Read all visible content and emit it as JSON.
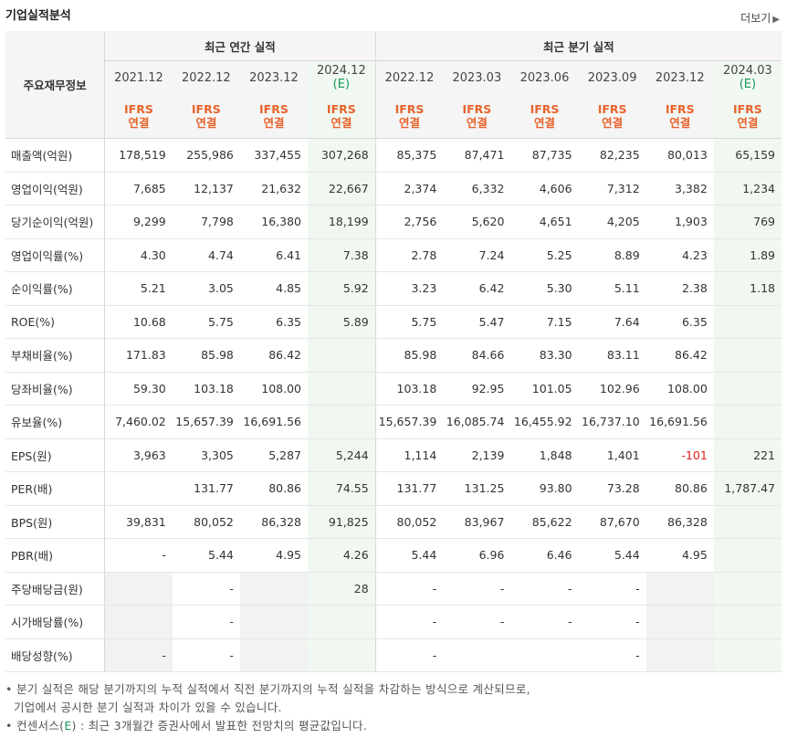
{
  "header": {
    "title": "기업실적분석",
    "more_label": "더보기",
    "more_icon": "chevron-right-icon"
  },
  "table": {
    "label_header": "주요재무정보",
    "group_annual": "최근 연간 실적",
    "group_quarter": "최근 분기 실적",
    "periods": [
      {
        "line1": "2021.12",
        "line2": "",
        "est": false
      },
      {
        "line1": "2022.12",
        "line2": "",
        "est": false
      },
      {
        "line1": "2023.12",
        "line2": "",
        "est": false
      },
      {
        "line1": "2024.12",
        "line2": "(E)",
        "est": true
      },
      {
        "line1": "2022.12",
        "line2": "",
        "est": false
      },
      {
        "line1": "2023.03",
        "line2": "",
        "est": false
      },
      {
        "line1": "2023.06",
        "line2": "",
        "est": false
      },
      {
        "line1": "2023.09",
        "line2": "",
        "est": false
      },
      {
        "line1": "2023.12",
        "line2": "",
        "est": false
      },
      {
        "line1": "2024.03",
        "line2": "(E)",
        "est": true
      }
    ],
    "ifrs_line1": "IFRS",
    "ifrs_line2": "연결",
    "rows": [
      {
        "label": "매출액(억원)",
        "values": [
          "178,519",
          "255,986",
          "337,455",
          "307,268",
          "85,375",
          "87,471",
          "87,735",
          "82,235",
          "80,013",
          "65,159"
        ]
      },
      {
        "label": "영업이익(억원)",
        "values": [
          "7,685",
          "12,137",
          "21,632",
          "22,667",
          "2,374",
          "6,332",
          "4,606",
          "7,312",
          "3,382",
          "1,234"
        ]
      },
      {
        "label": "당기순이익(억원)",
        "values": [
          "9,299",
          "7,798",
          "16,380",
          "18,199",
          "2,756",
          "5,620",
          "4,651",
          "4,205",
          "1,903",
          "769"
        ]
      },
      {
        "label": "영업이익률(%)",
        "values": [
          "4.30",
          "4.74",
          "6.41",
          "7.38",
          "2.78",
          "7.24",
          "5.25",
          "8.89",
          "4.23",
          "1.89"
        ]
      },
      {
        "label": "순이익률(%)",
        "values": [
          "5.21",
          "3.05",
          "4.85",
          "5.92",
          "3.23",
          "6.42",
          "5.30",
          "5.11",
          "2.38",
          "1.18"
        ]
      },
      {
        "label": "ROE(%)",
        "values": [
          "10.68",
          "5.75",
          "6.35",
          "5.89",
          "5.75",
          "5.47",
          "7.15",
          "7.64",
          "6.35",
          ""
        ]
      },
      {
        "label": "부채비율(%)",
        "values": [
          "171.83",
          "85.98",
          "86.42",
          "",
          "85.98",
          "84.66",
          "83.30",
          "83.11",
          "86.42",
          ""
        ]
      },
      {
        "label": "당좌비율(%)",
        "values": [
          "59.30",
          "103.18",
          "108.00",
          "",
          "103.18",
          "92.95",
          "101.05",
          "102.96",
          "108.00",
          ""
        ]
      },
      {
        "label": "유보율(%)",
        "values": [
          "7,460.02",
          "15,657.39",
          "16,691.56",
          "",
          "15,657.39",
          "16,085.74",
          "16,455.92",
          "16,737.10",
          "16,691.56",
          ""
        ]
      },
      {
        "label": "EPS(원)",
        "values": [
          "3,963",
          "3,305",
          "5,287",
          "5,244",
          "1,114",
          "2,139",
          "1,848",
          "1,401",
          "-101",
          "221"
        ]
      },
      {
        "label": "PER(배)",
        "values": [
          "",
          "131.77",
          "80.86",
          "74.55",
          "131.77",
          "131.25",
          "93.80",
          "73.28",
          "80.86",
          "1,787.47"
        ]
      },
      {
        "label": "BPS(원)",
        "values": [
          "39,831",
          "80,052",
          "86,328",
          "91,825",
          "80,052",
          "83,967",
          "85,622",
          "87,670",
          "86,328",
          ""
        ]
      },
      {
        "label": "PBR(배)",
        "values": [
          "-",
          "5.44",
          "4.95",
          "4.26",
          "5.44",
          "6.96",
          "6.46",
          "5.44",
          "4.95",
          ""
        ]
      },
      {
        "label": "주당배당금(원)",
        "values": [
          "",
          "-",
          "",
          "28",
          "-",
          "-",
          "-",
          "-",
          "",
          ""
        ]
      },
      {
        "label": "시가배당률(%)",
        "values": [
          "",
          "-",
          "",
          "",
          "-",
          "-",
          "-",
          "-",
          "",
          ""
        ]
      },
      {
        "label": "배당성향(%)",
        "values": [
          "-",
          "-",
          "",
          "",
          "-",
          "",
          "",
          "-",
          "",
          ""
        ]
      }
    ]
  },
  "notes": {
    "line1": "분기 실적은 해당 분기까지의 누적 실적에서 직전 분기까지의 누적 실적을 차감하는 방식으로 계산되므로,",
    "line2": "기업에서 공시한 분기 실적과 차이가 있을 수 있습니다.",
    "line3_pre": "컨센서스(",
    "line3_e": "E",
    "line3_post": ") : 최근 3개월간 증권사에서 발표한 전망치의 평균값입니다."
  },
  "colors": {
    "ifrs": "#e8632b",
    "estimate": "#1a9a5a",
    "negative": "#e02020",
    "estimate_bg": "#f1f8f1"
  }
}
